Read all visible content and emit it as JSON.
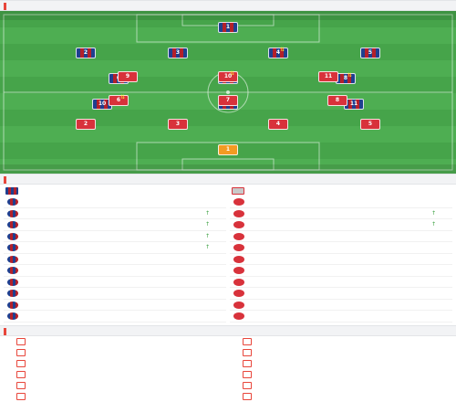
{
  "lineup_header": {
    "title": "",
    "subtitle": ""
  },
  "home_team": {
    "name": "",
    "formation": "",
    "coach": ""
  },
  "away_team": {
    "name": "",
    "formation": "",
    "coach": ""
  },
  "center_label": "",
  "home_players": [
    {
      "num": "1",
      "name": "",
      "rating": "",
      "row": 0,
      "col": 0.5,
      "sub": false
    },
    {
      "num": "2",
      "name": "",
      "rating": "",
      "row": 1,
      "col": 0.16,
      "sub": false
    },
    {
      "num": "3",
      "name": "",
      "rating": "",
      "row": 1,
      "col": 0.38,
      "sub": false
    },
    {
      "num": "4",
      "name": "",
      "rating": "",
      "row": 1,
      "col": 0.62,
      "sub": true
    },
    {
      "num": "5",
      "name": "",
      "rating": "",
      "row": 1,
      "col": 0.84,
      "sub": false
    },
    {
      "num": "6",
      "name": "",
      "rating": "",
      "row": 2,
      "col": 0.24,
      "sub": false
    },
    {
      "num": "7",
      "name": "",
      "rating": "",
      "row": 2,
      "col": 0.5,
      "sub": false
    },
    {
      "num": "8",
      "name": "",
      "rating": "",
      "row": 2,
      "col": 0.78,
      "sub": true
    },
    {
      "num": "9",
      "name": "",
      "rating": "",
      "row": 3,
      "col": 0.5,
      "sub": false
    },
    {
      "num": "10",
      "name": "",
      "rating": "",
      "row": 3,
      "col": 0.2,
      "sub": false
    },
    {
      "num": "11",
      "name": "",
      "rating": "",
      "row": 3,
      "col": 0.8,
      "sub": false
    }
  ],
  "away_players": [
    {
      "num": "1",
      "name": "",
      "rating": "",
      "row": 0,
      "col": 0.5,
      "sub": false
    },
    {
      "num": "2",
      "name": "",
      "rating": "",
      "row": 1,
      "col": 0.16,
      "sub": false
    },
    {
      "num": "3",
      "name": "",
      "rating": "",
      "row": 1,
      "col": 0.38,
      "sub": false
    },
    {
      "num": "4",
      "name": "",
      "rating": "",
      "row": 1,
      "col": 0.62,
      "sub": false
    },
    {
      "num": "5",
      "name": "",
      "rating": "",
      "row": 1,
      "col": 0.84,
      "sub": false
    },
    {
      "num": "6",
      "name": "",
      "rating": "",
      "row": 2,
      "col": 0.24,
      "sub": true
    },
    {
      "num": "7",
      "name": "",
      "rating": "",
      "row": 2,
      "col": 0.5,
      "sub": false
    },
    {
      "num": "8",
      "name": "",
      "rating": "",
      "row": 2,
      "col": 0.76,
      "sub": false
    },
    {
      "num": "9",
      "name": "",
      "rating": "",
      "row": 3,
      "col": 0.26,
      "sub": false
    },
    {
      "num": "10",
      "name": "",
      "rating": "",
      "row": 3,
      "col": 0.5,
      "sub": true
    },
    {
      "num": "11",
      "name": "",
      "rating": "",
      "row": 3,
      "col": 0.74,
      "sub": false
    }
  ],
  "subs_header": {
    "title": ""
  },
  "subs": {
    "home": [
      {
        "name": "",
        "meta": "",
        "time": "",
        "in": false
      },
      {
        "name": "",
        "meta": "",
        "time": "",
        "in": true
      },
      {
        "name": "",
        "meta": "",
        "time": "",
        "in": true
      },
      {
        "name": "",
        "meta": "",
        "time": "",
        "in": true
      },
      {
        "name": "",
        "meta": "",
        "time": "",
        "in": true
      },
      {
        "name": "",
        "meta": "",
        "time": "",
        "in": false
      },
      {
        "name": "",
        "meta": "",
        "time": "",
        "in": false
      },
      {
        "name": "",
        "meta": "",
        "time": "",
        "in": false
      },
      {
        "name": "",
        "meta": "",
        "time": "",
        "in": false
      },
      {
        "name": "",
        "meta": "",
        "time": "",
        "in": false
      },
      {
        "name": "",
        "meta": "",
        "time": "",
        "in": false
      }
    ],
    "away": [
      {
        "name": "",
        "meta": "",
        "time": "",
        "in": false
      },
      {
        "name": "",
        "meta": "",
        "time": "",
        "in": true
      },
      {
        "name": "",
        "meta": "",
        "time": "",
        "in": true
      },
      {
        "name": "",
        "meta": "",
        "time": "",
        "in": false
      },
      {
        "name": "",
        "meta": "",
        "time": "",
        "in": false
      },
      {
        "name": "",
        "meta": "",
        "time": "",
        "in": false
      },
      {
        "name": "",
        "meta": "",
        "time": "",
        "in": false
      },
      {
        "name": "",
        "meta": "",
        "time": "",
        "in": false
      },
      {
        "name": "",
        "meta": "",
        "time": "",
        "in": false
      },
      {
        "name": "",
        "meta": "",
        "time": "",
        "in": false
      },
      {
        "name": "",
        "meta": "",
        "time": "",
        "in": false
      }
    ]
  },
  "injuries_header": {
    "title": ""
  },
  "injuries": {
    "home": [
      "",
      "",
      "",
      "",
      "",
      ""
    ],
    "away": [
      "",
      "",
      "",
      "",
      "",
      "",
      ""
    ]
  },
  "colors": {
    "accent": "#e8463b",
    "pitch": "#4eae52",
    "home_blue": "#1f3f8f",
    "home_red": "#b3202a",
    "away_red": "#d8323b",
    "keeper_orange": "#f39b22",
    "sub_in": "#3aa03f"
  }
}
